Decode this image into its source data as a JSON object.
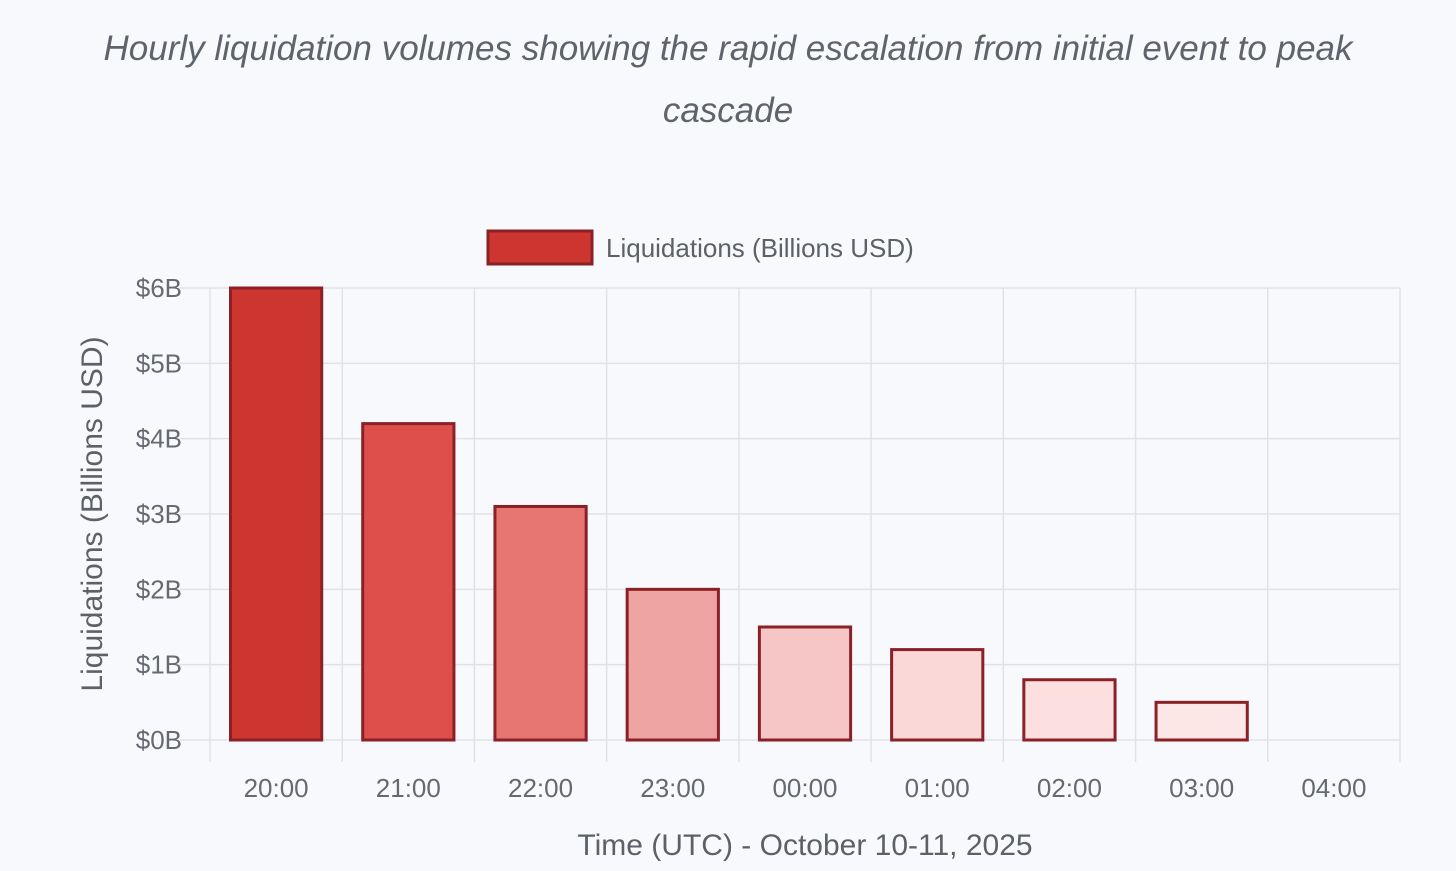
{
  "caption": "Hourly liquidation volumes showing the rapid escalation from initial event to peak cascade",
  "chart_data": {
    "type": "bar",
    "title": "",
    "categories": [
      "20:00",
      "21:00",
      "22:00",
      "23:00",
      "00:00",
      "01:00",
      "02:00",
      "03:00",
      "04:00"
    ],
    "series": [
      {
        "name": "Liquidations (Billions USD)",
        "values": [
          6.0,
          4.2,
          3.1,
          2.0,
          1.5,
          1.2,
          0.8,
          0.5,
          0
        ]
      }
    ],
    "xlabel": "Time (UTC) - October 10-11, 2025",
    "ylabel": "Liquidations (Billions USD)",
    "ylim": [
      0,
      6
    ],
    "yticks": [
      "$0B",
      "$1B",
      "$2B",
      "$3B",
      "$4B",
      "$5B",
      "$6B"
    ],
    "grid": true,
    "legend": "top-center",
    "colors": {
      "border": "#8b2126",
      "fills": [
        "#cc3530",
        "#de4f4b",
        "#e77673",
        "#eea4a3",
        "#f6c6c6",
        "#fad8d7",
        "#fce0df",
        "#fce6e6",
        "#fdeeee"
      ],
      "legend_fill": "#cc3530",
      "grid": "#e1e2e6"
    }
  }
}
